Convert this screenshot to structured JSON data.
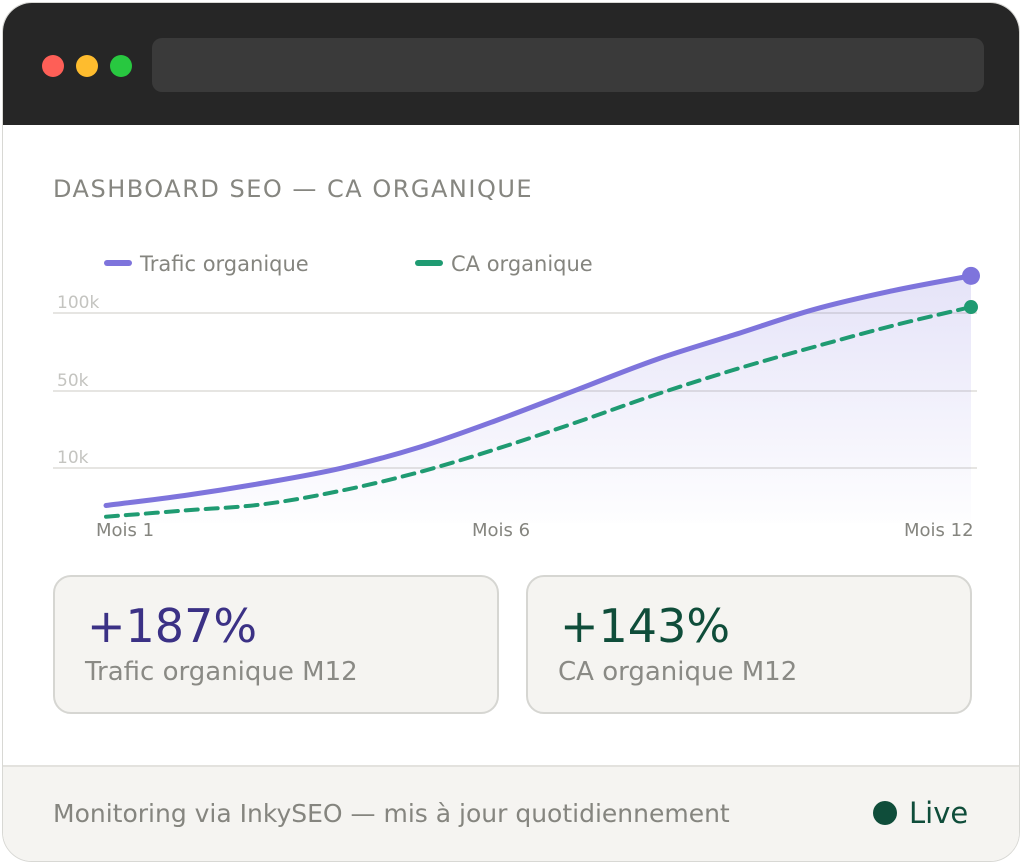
{
  "window": {
    "colors": {
      "titlebar": "#262626",
      "close": "#fe5f57",
      "minimize": "#febc2e",
      "maximize": "#28c840"
    }
  },
  "page": {
    "title": "DASHBOARD SEO — CA ORGANIQUE"
  },
  "chart_data": {
    "type": "line",
    "title": "",
    "xlabel": "",
    "ylabel": "",
    "x": [
      1,
      2,
      3,
      4,
      5,
      6,
      7,
      8,
      9,
      10,
      11,
      12
    ],
    "x_tick_labels": [
      "Mois 1",
      "Mois 6",
      "Mois 12"
    ],
    "y_tick_labels": [
      "100k",
      "50k",
      "10k"
    ],
    "grid": true,
    "legend_position": "top-left",
    "series": [
      {
        "name": "Trafic organique",
        "color": "#7e74dc",
        "style": "solid",
        "filled": true,
        "values": [
          -6,
          2,
          12,
          24,
          41,
          63,
          87,
          111,
          131,
          151,
          166,
          178
        ]
      },
      {
        "name": "CA organique",
        "color": "#1f9b72",
        "style": "dashed",
        "filled": false,
        "values": [
          -15,
          -10,
          -5,
          6,
          21,
          40,
          61,
          83,
          103,
          121,
          138,
          153
        ]
      }
    ]
  },
  "stats": [
    {
      "value": "+187%",
      "label": "Trafic organique M12",
      "color": "#3b3185"
    },
    {
      "value": "+143%",
      "label": "CA organique M12",
      "color": "#0f4d3a"
    }
  ],
  "footer": {
    "text": "Monitoring via InkySEO — mis à jour quotidiennement",
    "status": "Live",
    "status_color": "#0f4d3a"
  }
}
